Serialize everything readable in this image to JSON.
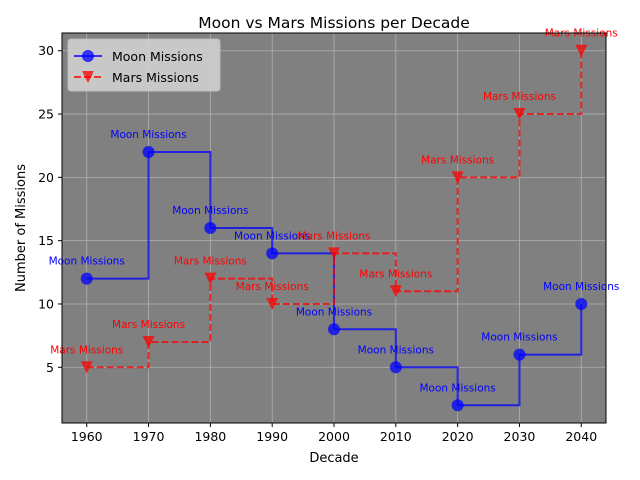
{
  "chart_data": {
    "type": "line",
    "title": "Moon vs Mars Missions per Decade",
    "xlabel": "Decade",
    "ylabel": "Number of Missions",
    "x": [
      1960,
      1970,
      1980,
      1990,
      2000,
      2010,
      2020,
      2030,
      2040
    ],
    "x_ticks": [
      1960,
      1970,
      1980,
      1990,
      2000,
      2010,
      2020,
      2030,
      2040
    ],
    "y_ticks": [
      5,
      10,
      15,
      20,
      25,
      30
    ],
    "xlim": [
      1956,
      2044
    ],
    "ylim": [
      0.6,
      31.4
    ],
    "grid": true,
    "legend_position": "top-left",
    "step": "post",
    "plot_background": "#808080",
    "series": [
      {
        "name": "Moon Missions",
        "values": [
          12,
          22,
          16,
          14,
          8,
          5,
          2,
          6,
          10
        ],
        "color": "#0000ff",
        "line_style": "solid",
        "marker": "circle",
        "point_label": "Moon Missions"
      },
      {
        "name": "Mars Missions",
        "values": [
          5,
          7,
          12,
          10,
          14,
          11,
          20,
          25,
          30
        ],
        "color": "#ff0000",
        "line_style": "dashed",
        "marker": "triangle-down",
        "point_label": "Mars Missions"
      }
    ]
  }
}
